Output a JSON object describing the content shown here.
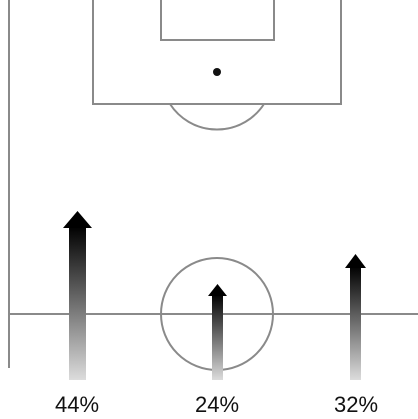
{
  "colors": {
    "background": "#ffffff",
    "pitch_lines": "#8a8a8a",
    "arrow_top": "#000000",
    "arrow_bottom": "#dcdcdc",
    "text": "#111111"
  },
  "icons": {
    "arrow": "up-arrow-icon",
    "spot": "penalty-spot-icon"
  },
  "arrows": [
    {
      "id": "left",
      "percent_label": "44%",
      "share": 44
    },
    {
      "id": "center",
      "percent_label": "24%",
      "share": 24
    },
    {
      "id": "right",
      "percent_label": "32%",
      "share": 32
    }
  ]
}
